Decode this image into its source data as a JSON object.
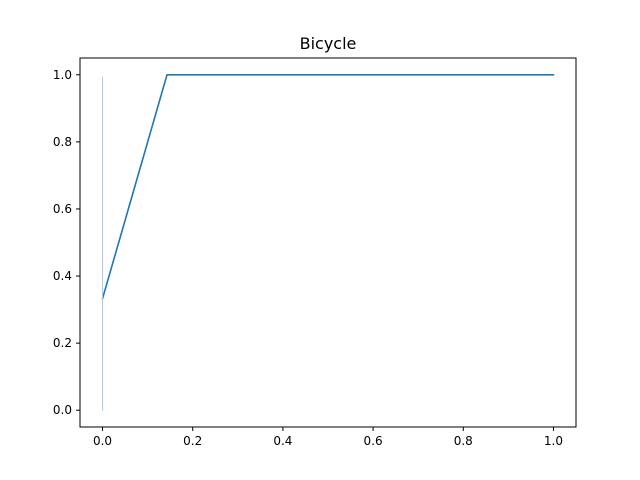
{
  "chart_data": {
    "type": "line",
    "title": "Bicycle",
    "xlabel": "",
    "ylabel": "",
    "xlim": [
      -0.05,
      1.05
    ],
    "ylim": [
      -0.05,
      1.05
    ],
    "grid": false,
    "x_ticks": [
      0.0,
      0.2,
      0.4,
      0.6,
      0.8,
      1.0
    ],
    "x_tick_labels": [
      "0.0",
      "0.2",
      "0.4",
      "0.6",
      "0.8",
      "1.0"
    ],
    "y_ticks": [
      0.0,
      0.2,
      0.4,
      0.6,
      0.8,
      1.0
    ],
    "y_tick_labels": [
      "0.0",
      "0.2",
      "0.4",
      "0.6",
      "0.8",
      "1.0"
    ],
    "series": [
      {
        "name": "curve",
        "color": "#1f77b4",
        "x": [
          0.0,
          0.143,
          1.0
        ],
        "y": [
          0.333,
          1.0,
          1.0
        ]
      },
      {
        "name": "vertical-marker",
        "color": "#aec7e8",
        "x": [
          0.0,
          0.0
        ],
        "y": [
          0.0,
          0.993
        ]
      }
    ]
  }
}
